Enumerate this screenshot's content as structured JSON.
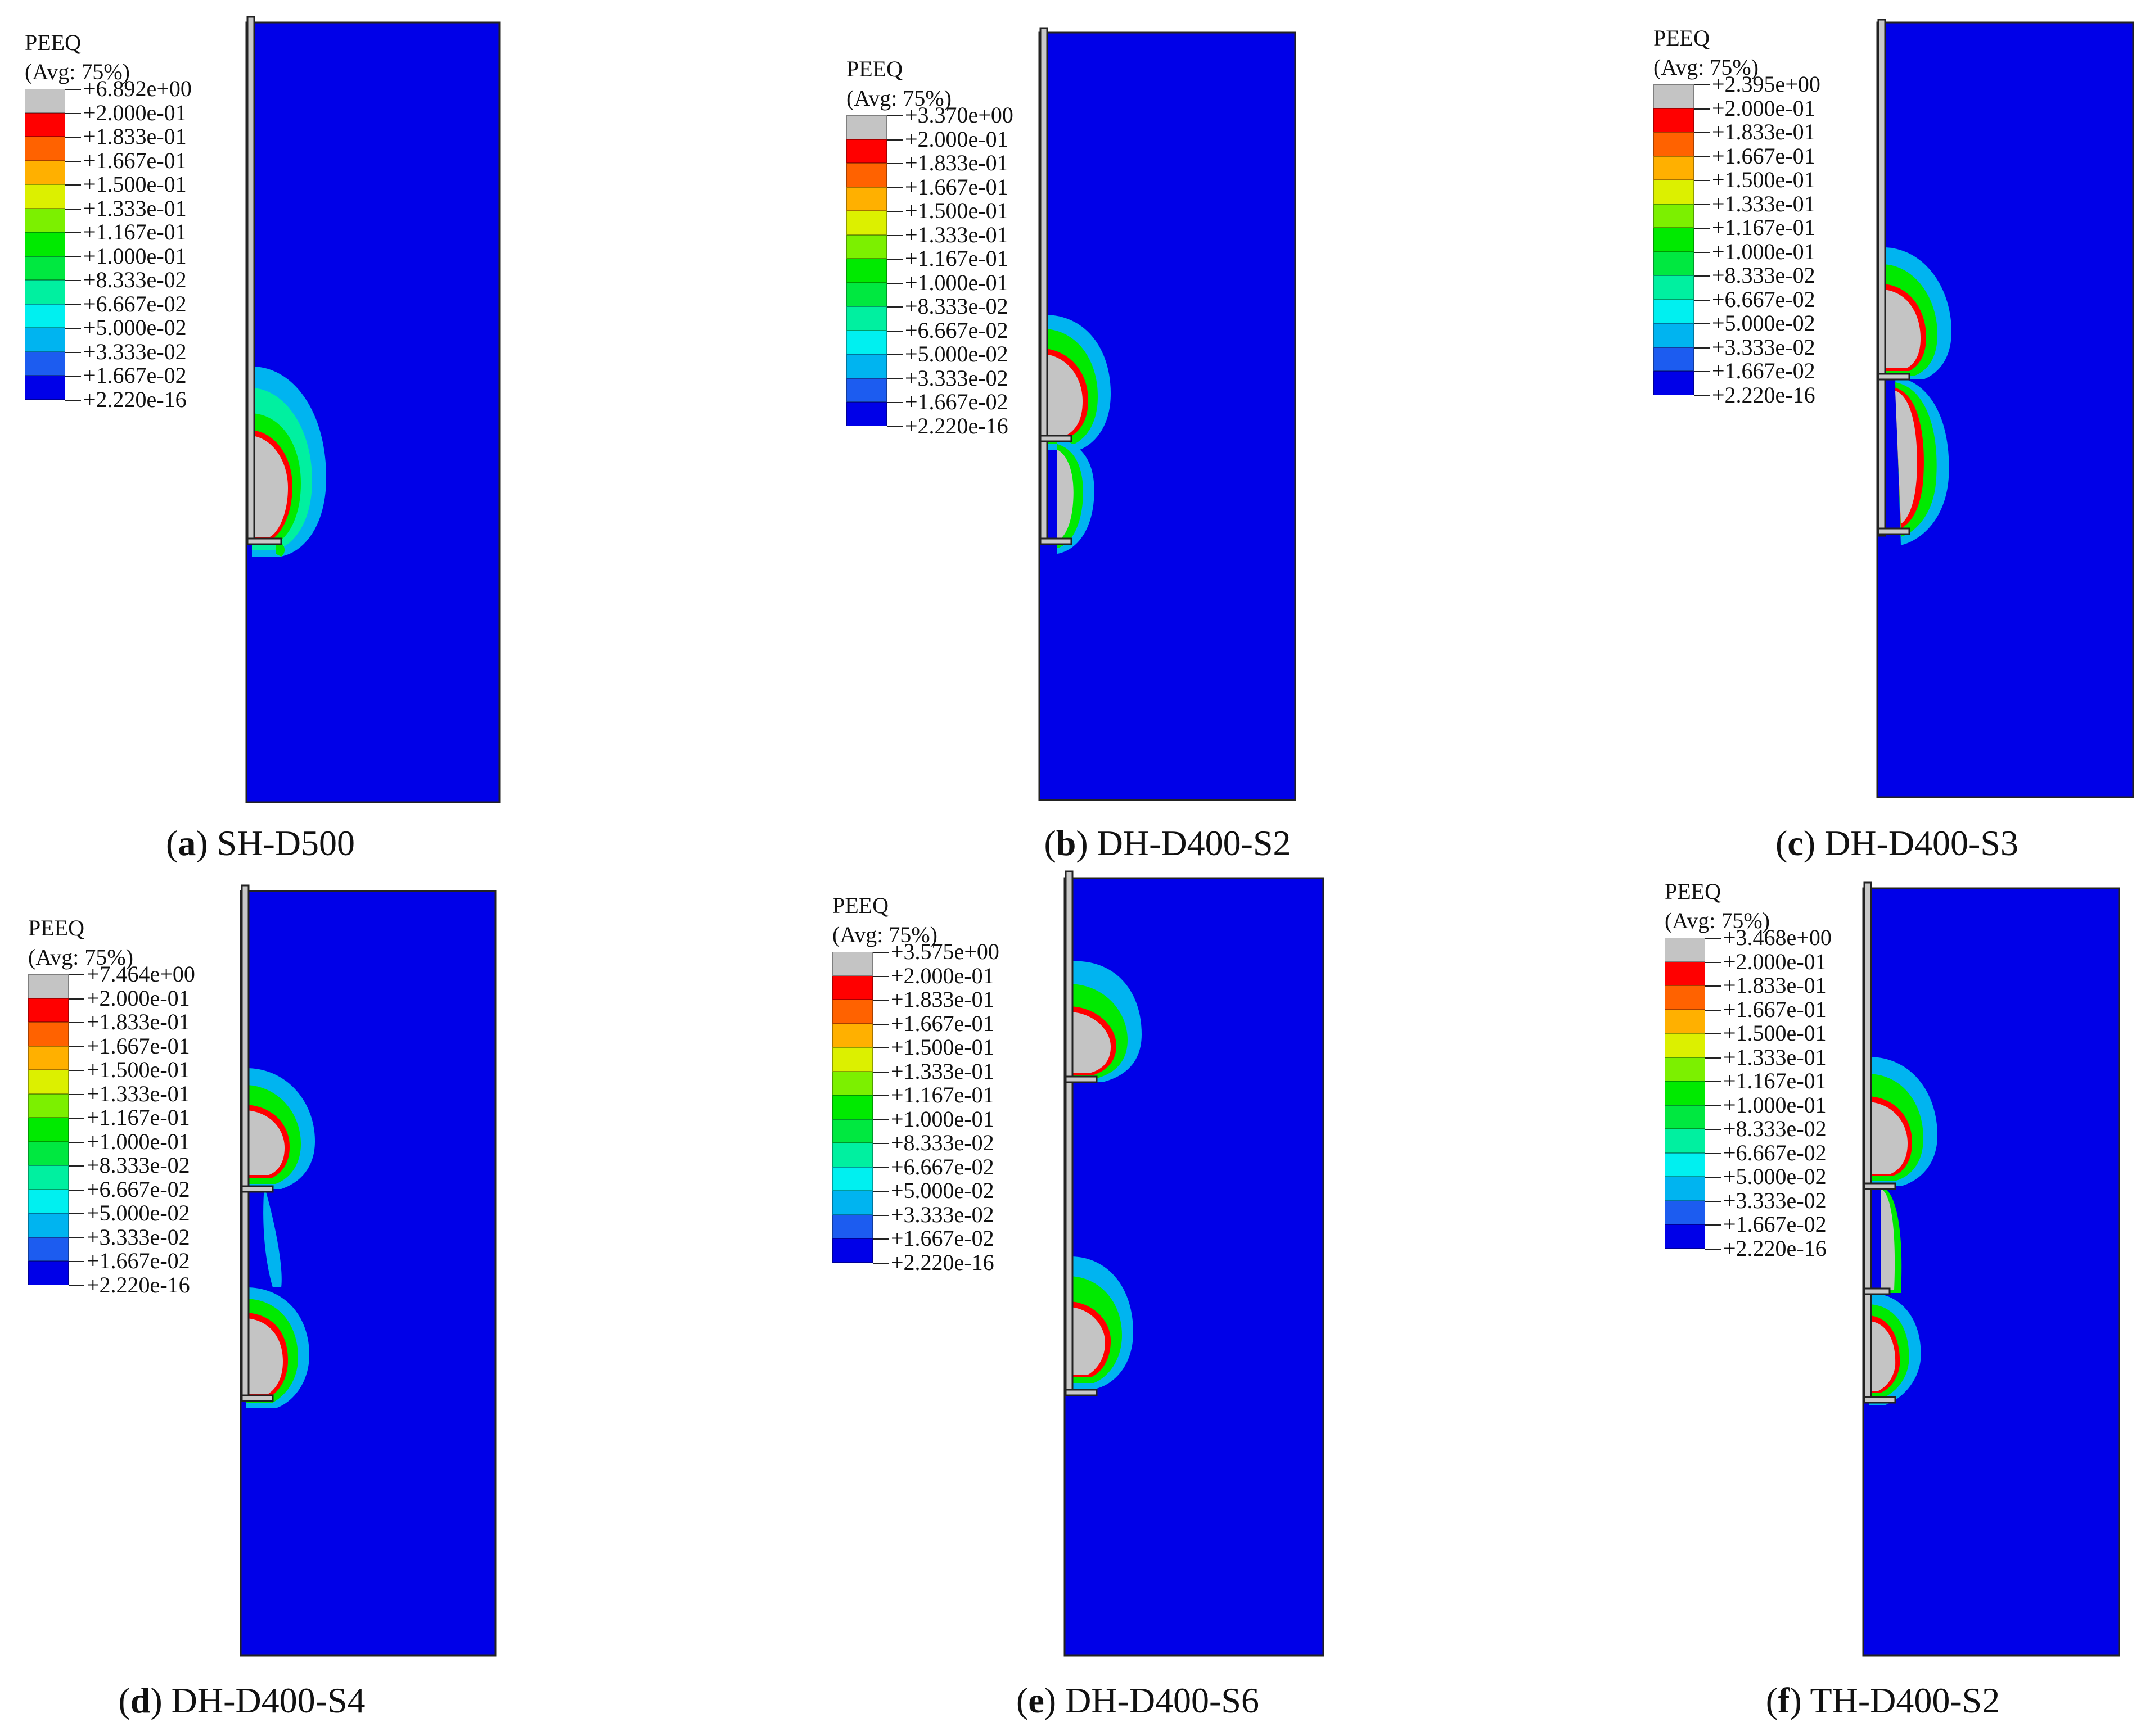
{
  "legend_title": "PEEQ",
  "legend_subtitle": "(Avg: 75%)",
  "legend_colors": [
    "#c4c4c4",
    "#ff0000",
    "#ff6200",
    "#ffb000",
    "#dcf000",
    "#7cf000",
    "#00ea00",
    "#00e840",
    "#00f0a0",
    "#00f0f0",
    "#00b4f0",
    "#1c5cf0",
    "#0000e8"
  ],
  "legend_shared_labels": [
    "+2.000e-01",
    "+1.833e-01",
    "+1.667e-01",
    "+1.500e-01",
    "+1.333e-01",
    "+1.167e-01",
    "+1.000e-01",
    "+8.333e-02",
    "+6.667e-02",
    "+5.000e-02",
    "+3.333e-02",
    "+1.667e-02",
    "+2.220e-16"
  ],
  "panels": [
    {
      "id": "a",
      "letter": "a",
      "name": "SH-D500",
      "max_label": "+6.892e+00",
      "helix_count": 1
    },
    {
      "id": "b",
      "letter": "b",
      "name": "DH-D400-S2",
      "max_label": "+3.370e+00",
      "helix_count": 2
    },
    {
      "id": "c",
      "letter": "c",
      "name": "DH-D400-S3",
      "max_label": "+2.395e+00",
      "helix_count": 2
    },
    {
      "id": "d",
      "letter": "d",
      "name": "DH-D400-S4",
      "max_label": "+7.464e+00",
      "helix_count": 2
    },
    {
      "id": "e",
      "letter": "e",
      "name": "DH-D400-S6",
      "max_label": "+3.575e+00",
      "helix_count": 2
    },
    {
      "id": "f",
      "letter": "f",
      "name": "TH-D400-S2",
      "max_label": "+3.468e+00",
      "helix_count": 3
    }
  ],
  "colors": {
    "soil": "#0000e8",
    "pile": "#c8c8c8",
    "outline": "#222222"
  }
}
